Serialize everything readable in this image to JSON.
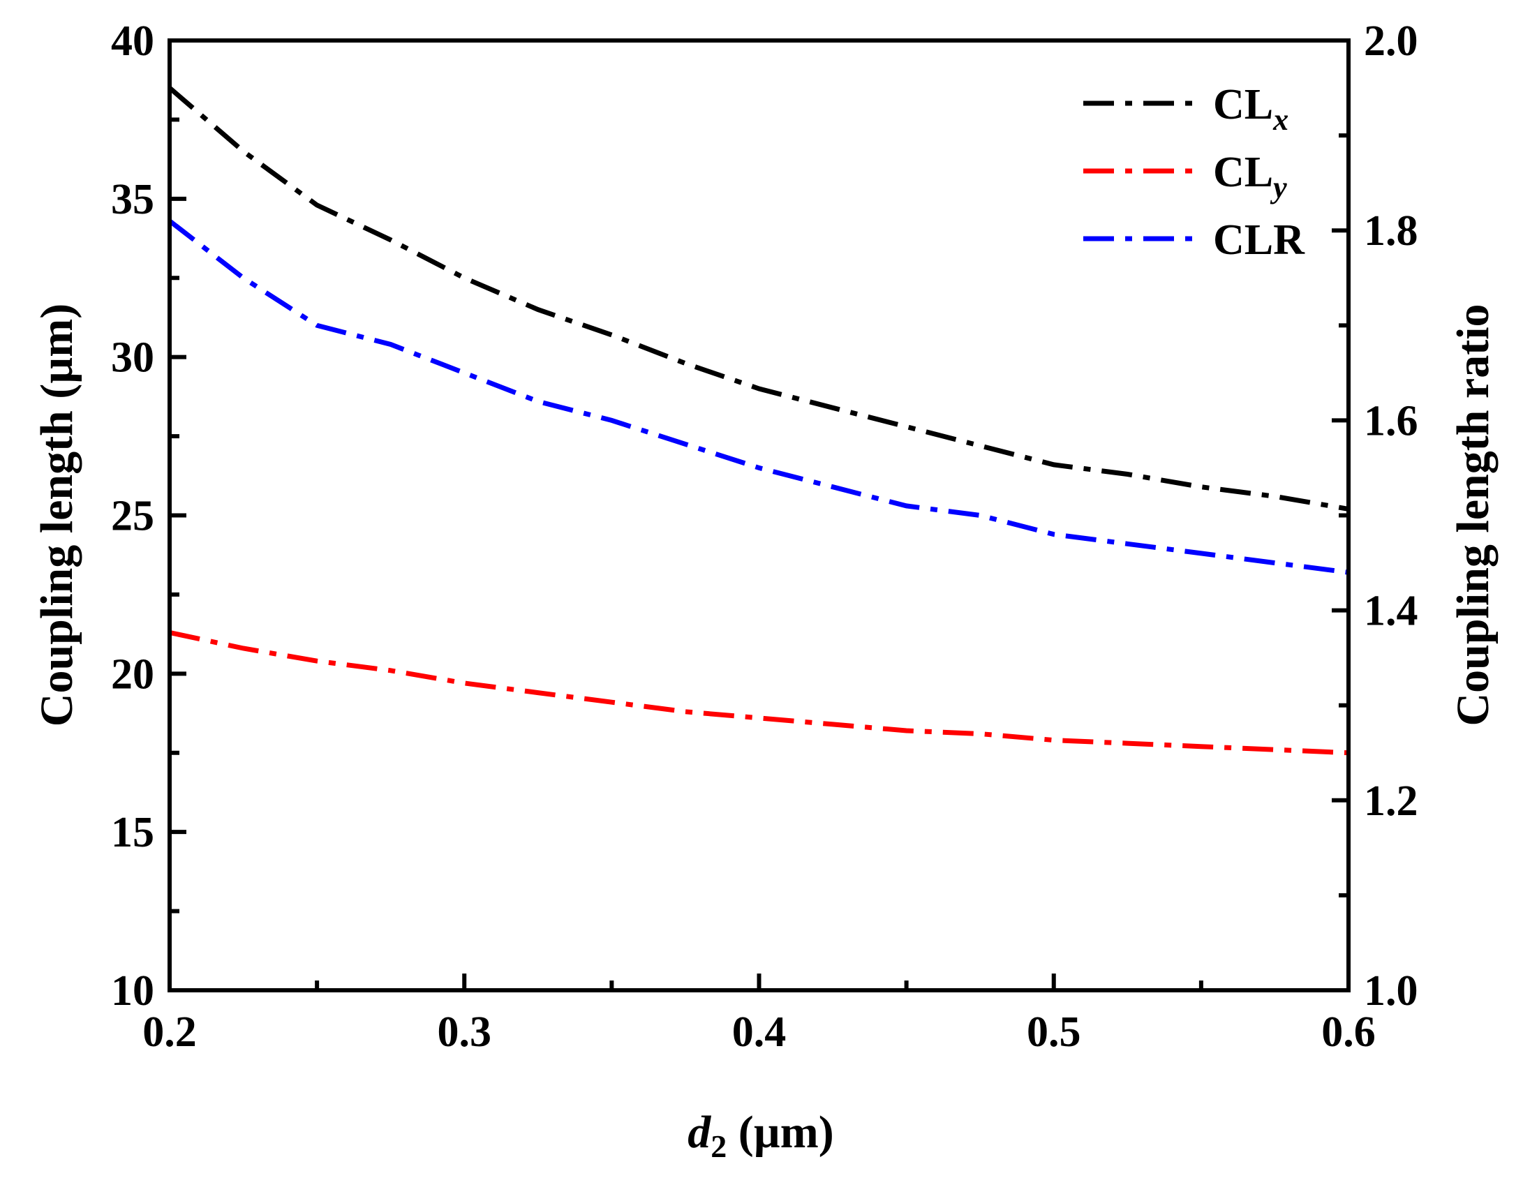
{
  "chart_data": {
    "type": "line",
    "title": "",
    "xlabel": {
      "main": "d",
      "sub": "2",
      "unit": " (µm)"
    },
    "ylabel": "Coupling length (µm)",
    "y2label": "Coupling length ratio",
    "xlim": [
      0.2,
      0.6
    ],
    "ylim": [
      10,
      40
    ],
    "y2lim": [
      1.0,
      2.0
    ],
    "x_ticks": [
      "0.2",
      "0.3",
      "0.4",
      "0.5",
      "0.6"
    ],
    "y_ticks": [
      "10",
      "15",
      "20",
      "25",
      "30",
      "35",
      "40"
    ],
    "y2_ticks": [
      "1.0",
      "1.2",
      "1.4",
      "1.6",
      "1.8",
      "2.0"
    ],
    "grid": false,
    "legend_position": "top-right",
    "x": [
      0.2,
      0.225,
      0.25,
      0.275,
      0.3,
      0.325,
      0.35,
      0.375,
      0.4,
      0.425,
      0.45,
      0.475,
      0.5,
      0.525,
      0.55,
      0.575,
      0.6
    ],
    "series": [
      {
        "name": "CL",
        "subscript": "x",
        "axis": "left",
        "color": "#000000",
        "values": [
          38.5,
          36.5,
          34.8,
          33.7,
          32.5,
          31.5,
          30.7,
          29.8,
          29.0,
          28.4,
          27.8,
          27.2,
          26.6,
          26.3,
          25.9,
          25.6,
          25.2
        ]
      },
      {
        "name": "CL",
        "subscript": "y",
        "axis": "left",
        "color": "#ff0000",
        "values": [
          21.3,
          20.8,
          20.4,
          20.1,
          19.7,
          19.4,
          19.1,
          18.8,
          18.6,
          18.4,
          18.2,
          18.1,
          17.9,
          17.8,
          17.7,
          17.6,
          17.5
        ]
      },
      {
        "name": "CLR",
        "subscript": "",
        "axis": "right",
        "color": "#0000ff",
        "values": [
          1.81,
          1.75,
          1.7,
          1.68,
          1.65,
          1.62,
          1.6,
          1.575,
          1.55,
          1.53,
          1.51,
          1.5,
          1.48,
          1.47,
          1.46,
          1.45,
          1.44
        ]
      }
    ]
  }
}
